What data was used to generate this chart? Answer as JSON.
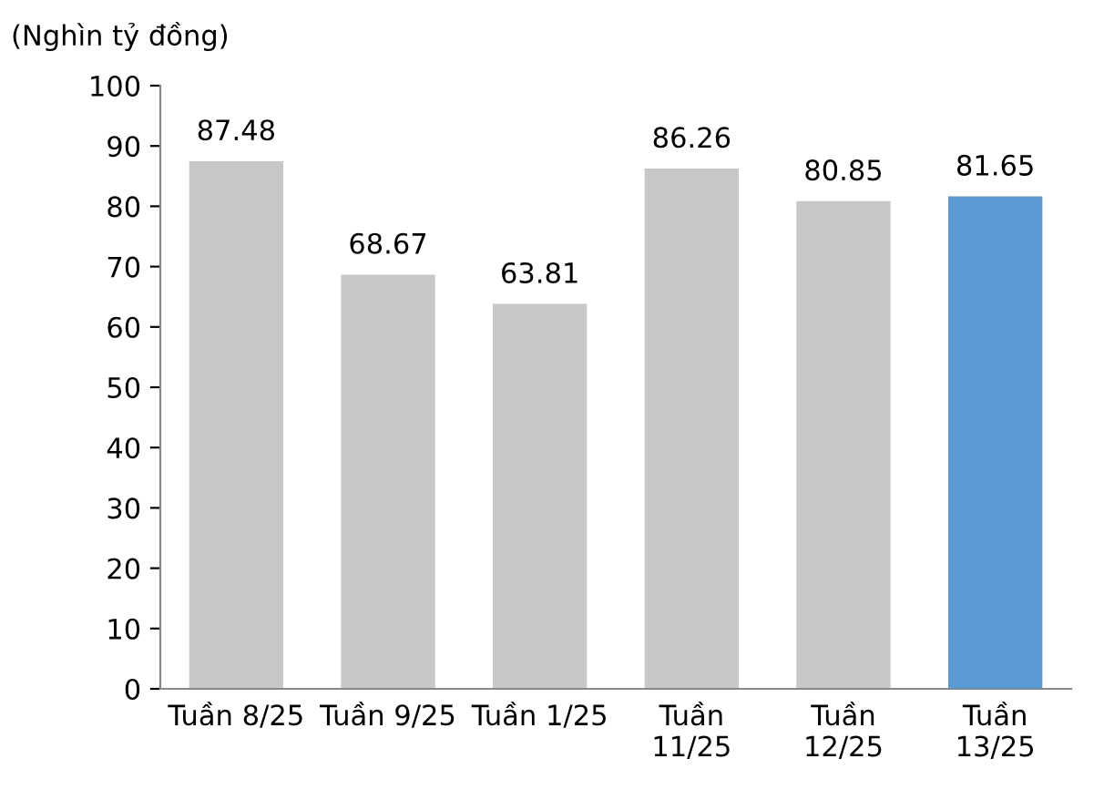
{
  "chart_data": {
    "type": "bar",
    "ylabel": "(Nghìn tỷ đồng)",
    "categories": [
      "Tuần 8/25",
      "Tuần 9/25",
      "Tuần 1/25",
      "Tuần\n11/25",
      "Tuần\n12/25",
      "Tuần\n13/25"
    ],
    "values": [
      87.48,
      68.67,
      63.81,
      86.26,
      80.85,
      81.65
    ],
    "colors": [
      "#c8c8c8",
      "#c8c8c8",
      "#c8c8c8",
      "#c8c8c8",
      "#c8c8c8",
      "#5b9bd5"
    ],
    "ylim": [
      0,
      100
    ],
    "yticks": [
      0,
      10,
      20,
      30,
      40,
      50,
      60,
      70,
      80,
      90,
      100
    ],
    "data_labels": true,
    "grid": false,
    "legend": false
  }
}
